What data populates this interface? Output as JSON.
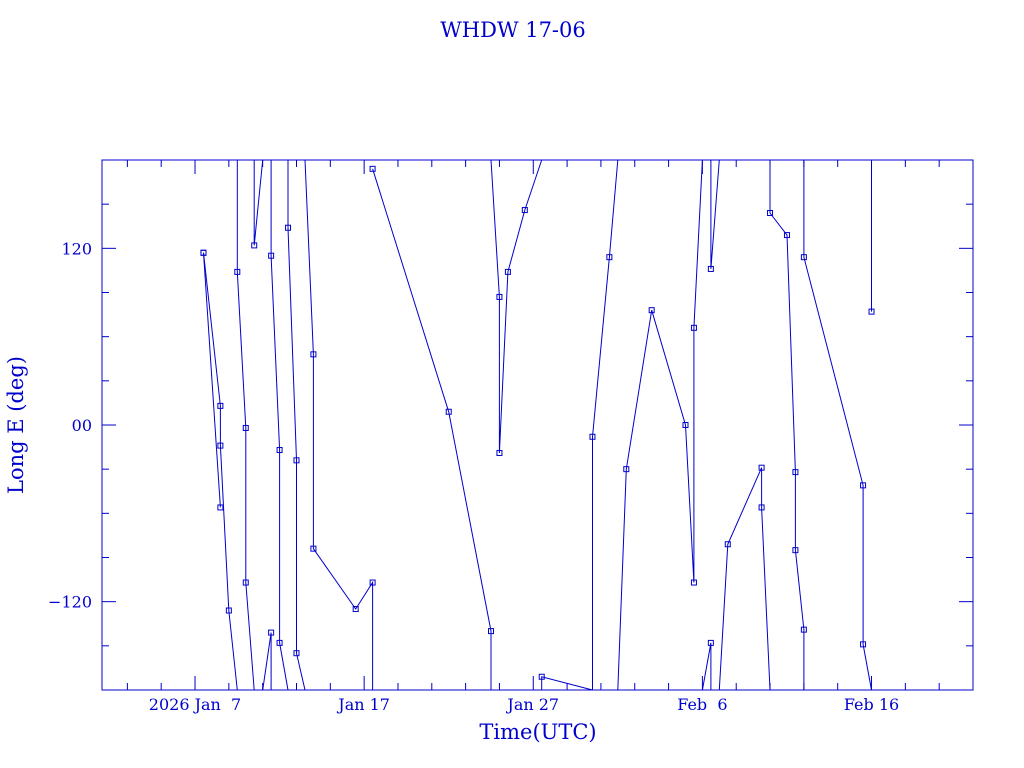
{
  "chart_data": {
    "type": "line",
    "title": "WHDW 17-06",
    "xlabel": "Time(UTC)",
    "ylabel": "Long E (deg)",
    "ylim": [
      -180,
      180
    ],
    "xlim": [
      "2026-01-01T12:00",
      "2026-02-22T00:00"
    ],
    "yticks": [
      {
        "value": -120,
        "label": "−120"
      },
      {
        "value": 0,
        "label": "00"
      },
      {
        "value": 120,
        "label": "120"
      }
    ],
    "xticks": [
      {
        "date": "2026-01-07T00:00",
        "label": "2026 Jan  7"
      },
      {
        "date": "2026-01-17T00:00",
        "label": "Jan 17"
      },
      {
        "date": "2026-01-27T00:00",
        "label": "Jan 27"
      },
      {
        "date": "2026-02-06T00:00",
        "label": "Feb  6"
      },
      {
        "date": "2026-02-16T00:00",
        "label": "Feb 16"
      }
    ],
    "grid": false,
    "color": "#0000cc",
    "segments": [
      [
        [
          "2026-01-08T12:00",
          -56
        ],
        [
          "2026-01-07T12:00",
          117
        ]
      ],
      [
        [
          "2026-01-07T12:00",
          117
        ],
        [
          "2026-01-08T12:00",
          13
        ],
        [
          "2026-01-08T12:00",
          -14
        ],
        [
          "2026-01-09T00:00",
          -126
        ],
        [
          "2026-01-09T12:00",
          -180
        ]
      ],
      [
        [
          "2026-01-09T12:00",
          180
        ],
        [
          "2026-01-09T12:00",
          104
        ],
        [
          "2026-01-10T00:00",
          -2
        ],
        [
          "2026-01-10T00:00",
          -107
        ],
        [
          "2026-01-10T12:00",
          -180
        ]
      ],
      [
        [
          "2026-01-10T12:00",
          180
        ],
        [
          "2026-01-10T12:00",
          122
        ],
        [
          "2026-01-11T00:00",
          180
        ]
      ],
      [
        [
          "2026-01-11T00:00",
          -180
        ],
        [
          "2026-01-11T12:00",
          -141
        ],
        [
          "2026-01-11T12:00",
          -180
        ]
      ],
      [
        [
          "2026-01-11T12:00",
          180
        ],
        [
          "2026-01-11T12:00",
          115
        ],
        [
          "2026-01-12T00:00",
          -17
        ],
        [
          "2026-01-12T00:00",
          -148
        ],
        [
          "2026-01-12T12:00",
          -180
        ]
      ],
      [
        [
          "2026-01-12T12:00",
          180
        ],
        [
          "2026-01-12T12:00",
          134
        ],
        [
          "2026-01-13T00:00",
          -24
        ],
        [
          "2026-01-13T00:00",
          -155
        ],
        [
          "2026-01-13T12:00",
          -180
        ]
      ],
      [
        [
          "2026-01-13T12:00",
          180
        ],
        [
          "2026-01-14T00:00",
          48
        ],
        [
          "2026-01-14T00:00",
          -84
        ],
        [
          "2026-01-16T12:00",
          -125
        ],
        [
          "2026-01-17T12:00",
          -107
        ],
        [
          "2026-01-17T12:00",
          -180
        ]
      ],
      [
        [
          "2026-01-17T12:00",
          174
        ],
        [
          "2026-01-22T00:00",
          9
        ],
        [
          "2026-01-24T12:00",
          -140
        ],
        [
          "2026-01-24T12:00",
          -180
        ]
      ],
      [
        [
          "2026-01-24T12:00",
          180
        ],
        [
          "2026-01-25T00:00",
          87
        ],
        [
          "2026-01-25T00:00",
          -19
        ],
        [
          "2026-01-25T12:00",
          104
        ],
        [
          "2026-01-26T12:00",
          146
        ],
        [
          "2026-01-27T12:00",
          180
        ]
      ],
      [
        [
          "2026-01-27T12:00",
          -180
        ],
        [
          "2026-01-27T12:00",
          -171
        ],
        [
          "2026-01-30T12:00",
          -180
        ]
      ],
      [
        [
          "2026-01-30T12:00",
          -180
        ],
        [
          "2026-01-30T12:00",
          -179
        ],
        [
          "2026-01-30T12:00",
          -180
        ]
      ],
      [
        [
          "2026-01-30T12:00",
          -180
        ],
        [
          "2026-01-30T12:00",
          -8
        ],
        [
          "2026-01-31T12:00",
          114
        ],
        [
          "2026-02-01T00:00",
          180
        ]
      ],
      [
        [
          "2026-02-01T00:00",
          -180
        ],
        [
          "2026-02-01T12:00",
          -30
        ],
        [
          "2026-02-03T00:00",
          78
        ],
        [
          "2026-02-05T00:00",
          0
        ],
        [
          "2026-02-05T12:00",
          -107
        ],
        [
          "2026-02-05T12:00",
          66
        ],
        [
          "2026-02-06T00:00",
          180
        ]
      ],
      [
        [
          "2026-02-06T00:00",
          -180
        ],
        [
          "2026-02-06T12:00",
          -148
        ],
        [
          "2026-02-06T12:00",
          -180
        ]
      ],
      [
        [
          "2026-02-06T12:00",
          180
        ],
        [
          "2026-02-06T12:00",
          106
        ],
        [
          "2026-02-07T00:00",
          180
        ]
      ],
      [
        [
          "2026-02-07T00:00",
          -180
        ],
        [
          "2026-02-07T12:00",
          -81
        ],
        [
          "2026-02-09T12:00",
          -29
        ],
        [
          "2026-02-09T12:00",
          -56
        ],
        [
          "2026-02-10T00:00",
          -180
        ]
      ],
      [
        [
          "2026-02-10T00:00",
          180
        ],
        [
          "2026-02-10T00:00",
          144
        ],
        [
          "2026-02-11T00:00",
          129
        ],
        [
          "2026-02-11T12:00",
          -32
        ],
        [
          "2026-02-11T12:00",
          -85
        ],
        [
          "2026-02-12T00:00",
          -139
        ],
        [
          "2026-02-12T00:00",
          -180
        ]
      ],
      [
        [
          "2026-02-12T00:00",
          180
        ],
        [
          "2026-02-12T00:00",
          114
        ],
        [
          "2026-02-15T12:00",
          -41
        ],
        [
          "2026-02-15T12:00",
          -149
        ],
        [
          "2026-02-16T00:00",
          -180
        ]
      ],
      [
        [
          "2026-02-16T00:00",
          180
        ],
        [
          "2026-02-16T00:00",
          77
        ]
      ]
    ]
  }
}
